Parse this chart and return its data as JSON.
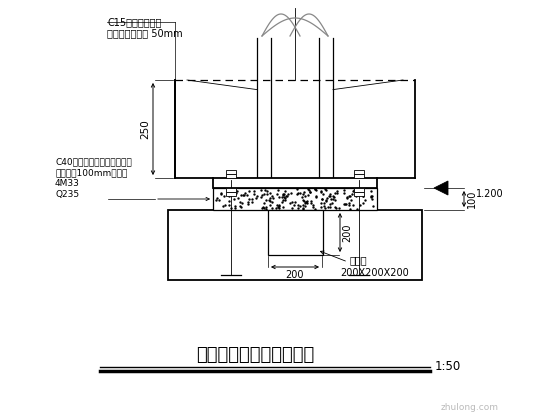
{
  "bg_color": "#f0f0f0",
  "line_color": "#000000",
  "title": "柱脚包裹及后浇砼大样图",
  "scale": "1:50",
  "annotations": {
    "c15": "C15素混凝土包裹",
    "protection": "保护层厚度大于 50mm",
    "c40": "C40无收缩细石混凝土找平层",
    "leveling": "找平层厚100mm，后浇",
    "bolt": "4M33",
    "steel": "Q235",
    "dim_250": "250",
    "dim_200v": "200",
    "dim_200h": "200",
    "dim_100": "100",
    "dim_1200": "1.200",
    "groove": "抗剪槽",
    "groove_size": "200X200X200"
  }
}
